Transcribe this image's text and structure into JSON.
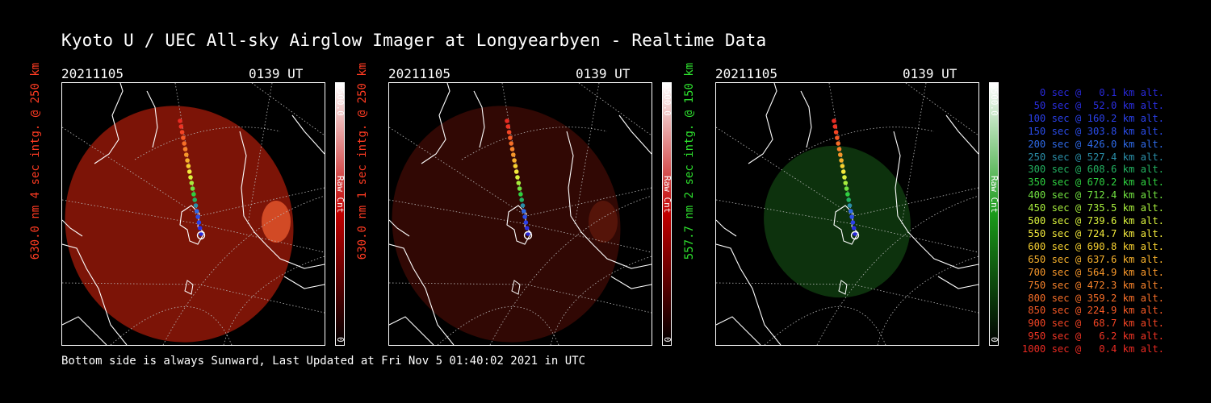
{
  "title": "Kyoto U / UEC All-sky Airglow Imager at Longyearbyen - Realtime Data",
  "footer": "Bottom side is always Sunward, Last Updated at Fri Nov  5 01:40:02 2021 in UTC",
  "panels": [
    {
      "date": "20211105",
      "time": "0139 UT",
      "side_label": "630.0 nm 4 sec intg. @ 250 km",
      "side_color": "#ff3b22",
      "cbar_max": "6500.0",
      "cbar_label": "Raw Cnt",
      "cbar_min": "0",
      "cbar_color": "#c00000",
      "image_color": "#8a1608",
      "image_opacity": 0.9,
      "aurora": true
    },
    {
      "date": "20211105",
      "time": "0139 UT",
      "side_label": "630.0 nm 1 sec intg. @ 250 km",
      "side_color": "#ff3b22",
      "cbar_max": "6500.0",
      "cbar_label": "Raw Cnt",
      "cbar_min": "0",
      "cbar_color": "#c00000",
      "image_color": "#3a0905",
      "image_opacity": 0.85,
      "aurora": true
    },
    {
      "date": "20211105",
      "time": "0139 UT",
      "side_label": "557.7 nm 2 sec intg. @ 150 km",
      "side_color": "#2ee02e",
      "cbar_max": "6500.0",
      "cbar_label": "Raw Cnt",
      "cbar_min": "0",
      "cbar_color": "#1a9a1a",
      "image_color": "#0f3b0f",
      "image_opacity": 0.85,
      "aurora": false
    }
  ],
  "legend": [
    {
      "text": "   0 sec @   0.1 km alt.",
      "color": "#2828d8"
    },
    {
      "text": "  50 sec @  52.0 km alt.",
      "color": "#2a2ee0"
    },
    {
      "text": " 100 sec @ 160.2 km alt.",
      "color": "#2a40e8"
    },
    {
      "text": " 150 sec @ 303.8 km alt.",
      "color": "#2a4ce8"
    },
    {
      "text": " 200 sec @ 426.0 km alt.",
      "color": "#2e6ae8"
    },
    {
      "text": " 250 sec @ 527.4 km alt.",
      "color": "#2a8ea8"
    },
    {
      "text": " 300 sec @ 608.6 km alt.",
      "color": "#22b060"
    },
    {
      "text": " 350 sec @ 670.2 km alt.",
      "color": "#2ed040"
    },
    {
      "text": " 400 sec @ 712.4 km alt.",
      "color": "#70e040"
    },
    {
      "text": " 450 sec @ 735.5 km alt.",
      "color": "#a6ec3c"
    },
    {
      "text": " 500 sec @ 739.6 km alt.",
      "color": "#d8f03c"
    },
    {
      "text": " 550 sec @ 724.7 km alt.",
      "color": "#f2e83c"
    },
    {
      "text": " 600 sec @ 690.8 km alt.",
      "color": "#f6d030"
    },
    {
      "text": " 650 sec @ 637.6 km alt.",
      "color": "#f6b02c"
    },
    {
      "text": " 700 sec @ 564.9 km alt.",
      "color": "#f6962a"
    },
    {
      "text": " 750 sec @ 472.3 km alt.",
      "color": "#f6822a"
    },
    {
      "text": " 800 sec @ 359.2 km alt.",
      "color": "#f66e28"
    },
    {
      "text": " 850 sec @ 224.9 km alt.",
      "color": "#f65a26"
    },
    {
      "text": " 900 sec @  68.7 km alt.",
      "color": "#f24424"
    },
    {
      "text": " 950 sec @   6.2 km alt.",
      "color": "#ee3424"
    },
    {
      "text": "1000 sec @   0.4 km alt.",
      "color": "#e82a22"
    }
  ]
}
